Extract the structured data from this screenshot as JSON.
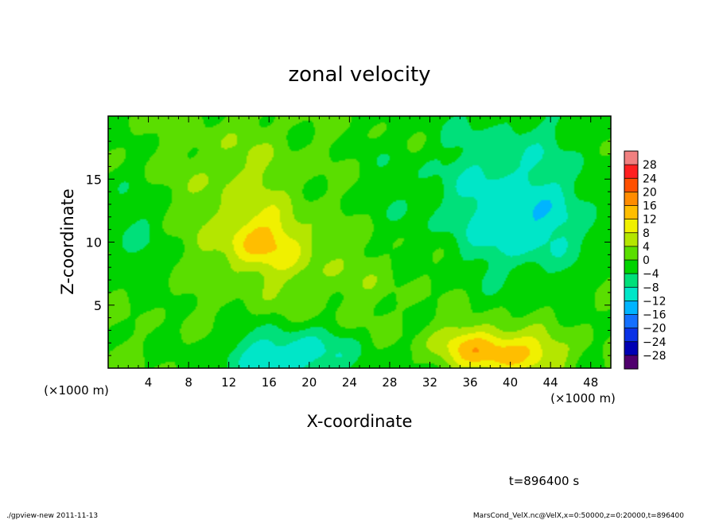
{
  "chart_data": {
    "type": "heatmap",
    "title": "zonal velocity",
    "xlabel": "X-coordinate",
    "ylabel": "Z-coordinate",
    "x_unit_left": "(×1000 m)",
    "x_unit_right": "(×1000 m)",
    "xlim": [
      0,
      50
    ],
    "ylim": [
      0,
      20
    ],
    "x_ticks": [
      4,
      8,
      12,
      16,
      20,
      24,
      28,
      32,
      36,
      40,
      44,
      48
    ],
    "x_tick_labels": [
      "4",
      "8",
      "12",
      "16",
      "20",
      "24",
      "28",
      "32",
      "36",
      "40",
      "44",
      "48"
    ],
    "y_ticks": [
      5,
      10,
      15
    ],
    "y_tick_labels": [
      "5",
      "10",
      "15"
    ],
    "colorbar_levels": [
      28,
      24,
      20,
      16,
      12,
      8,
      4,
      0,
      -4,
      -8,
      -12,
      -16,
      -20,
      -24,
      -28
    ],
    "colorbar_labels": [
      "28",
      "24",
      "20",
      "16",
      "12",
      "8",
      "4",
      "0",
      "−4",
      "−8",
      "−12",
      "−16",
      "−20",
      "−24",
      "−28"
    ],
    "colorbar_colors": [
      "#f08080",
      "#ff2020",
      "#ff5000",
      "#ff8c00",
      "#ffbe00",
      "#f0f000",
      "#b4e600",
      "#5ade00",
      "#00d300",
      "#00e07a",
      "#00e6c8",
      "#00b4ff",
      "#1470ff",
      "#0a32e6",
      "#0000b4",
      "#50006e"
    ],
    "features": [
      {
        "x": 15.5,
        "z": 10.0,
        "amplitude": 9,
        "sx": 3.0,
        "sz": 1.6
      },
      {
        "x": 13.0,
        "z": 13.5,
        "amplitude": 5,
        "sx": 5.0,
        "sz": 4.0
      },
      {
        "x": 22.0,
        "z": 7.5,
        "amplitude": 3,
        "sx": 6.0,
        "sz": 2.5
      },
      {
        "x": 40.0,
        "z": 1.2,
        "amplitude": 14,
        "sx": 3.5,
        "sz": 1.2
      },
      {
        "x": 35.5,
        "z": 2.0,
        "amplitude": 7,
        "sx": 2.5,
        "sz": 1.2
      },
      {
        "x": 18.0,
        "z": 1.0,
        "amplitude": -12,
        "sx": 4.5,
        "sz": 1.5
      },
      {
        "x": 40.0,
        "z": 14.0,
        "amplitude": -9,
        "sx": 5.5,
        "sz": 4.5
      },
      {
        "x": 42.0,
        "z": 11.0,
        "amplitude": -5,
        "sx": 4.0,
        "sz": 2.0
      },
      {
        "x": 3.0,
        "z": 11.0,
        "amplitude": -4,
        "sx": 3.5,
        "sz": 3.0
      },
      {
        "x": 27.0,
        "z": 13.0,
        "amplitude": -1.5,
        "sx": 5.0,
        "sz": 4.0
      }
    ],
    "time_label": "t=896400 s"
  },
  "footer": {
    "left": "./gpview-new  2011-11-13",
    "right": "MarsCond_VelX.nc@VelX,x=0:50000,z=0:20000,t=896400"
  }
}
